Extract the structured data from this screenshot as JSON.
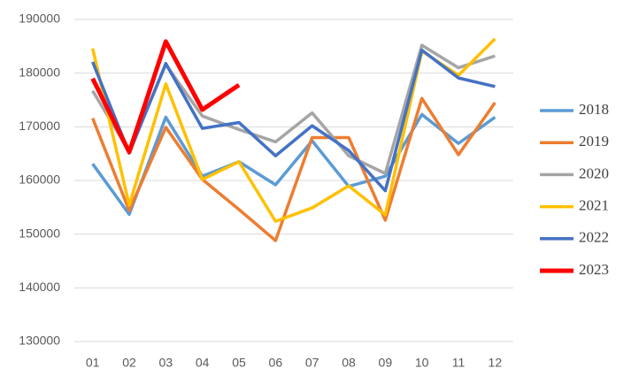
{
  "chart_data": {
    "type": "line",
    "categories": [
      "01",
      "02",
      "03",
      "04",
      "05",
      "06",
      "07",
      "08",
      "09",
      "10",
      "11",
      "12"
    ],
    "series": [
      {
        "name": "2018",
        "color": "#5b9bd5",
        "values": [
          163100,
          153700,
          171800,
          160800,
          163500,
          159200,
          167400,
          158900,
          160800,
          172300,
          166900,
          171800
        ]
      },
      {
        "name": "2019",
        "color": "#ed7d31",
        "values": [
          171600,
          154400,
          169900,
          160200,
          154600,
          148800,
          168000,
          168000,
          152600,
          175300,
          164800,
          174500
        ]
      },
      {
        "name": "2020",
        "color": "#a5a5a5",
        "values": [
          176700,
          165400,
          181600,
          172000,
          169500,
          167200,
          172600,
          164600,
          161300,
          185200,
          181000,
          183200
        ]
      },
      {
        "name": "2021",
        "color": "#ffc000",
        "values": [
          184600,
          155400,
          178000,
          160200,
          163500,
          152400,
          154900,
          159000,
          153600,
          184100,
          179600,
          186400
        ]
      },
      {
        "name": "2022",
        "color": "#4472c4",
        "values": [
          182100,
          165100,
          181800,
          169700,
          170800,
          164600,
          170200,
          165600,
          158100,
          184300,
          179100,
          177500
        ]
      },
      {
        "name": "2023",
        "color": "#ff0000",
        "values": [
          179000,
          165300,
          185900,
          173200,
          177800,
          null,
          null,
          null,
          null,
          null,
          null,
          null
        ]
      }
    ],
    "ylim": [
      130000,
      190000
    ],
    "yticks": [
      130000,
      140000,
      150000,
      160000,
      170000,
      180000,
      190000
    ],
    "grid": true
  }
}
